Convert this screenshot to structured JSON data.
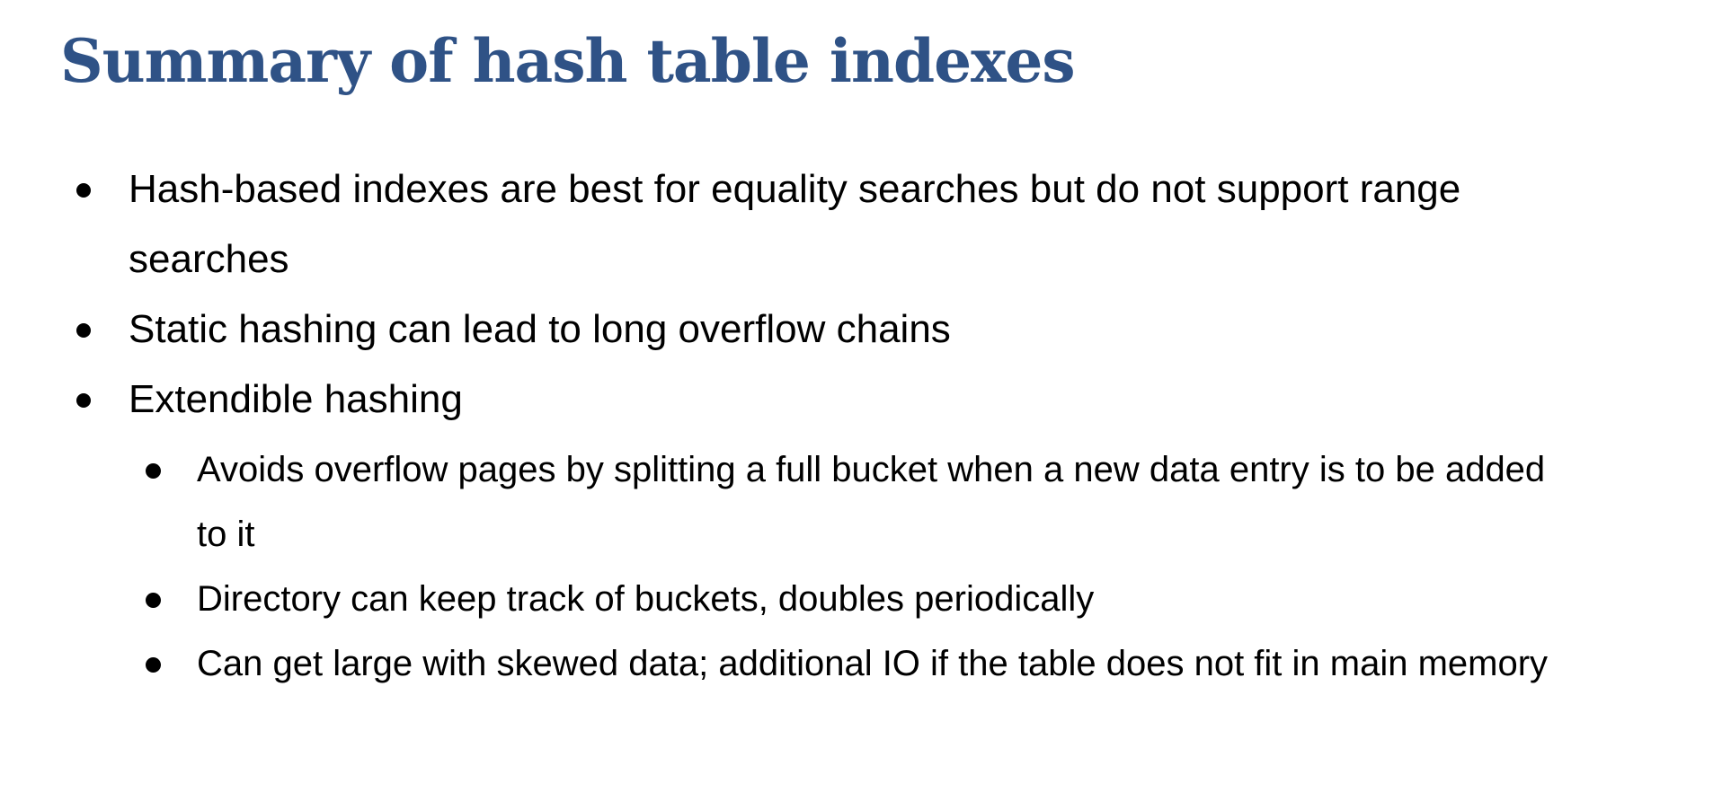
{
  "slide": {
    "title": "Summary of hash table indexes",
    "bullets": [
      {
        "level": 1,
        "lines": [
          "Hash-based indexes are best for equality searches but do not support range",
          "searches"
        ]
      },
      {
        "level": 1,
        "lines": [
          "Static hashing can lead to long overflow chains"
        ]
      },
      {
        "level": 1,
        "lines": [
          "Extendible hashing"
        ]
      },
      {
        "level": 2,
        "lines": [
          "Avoids overflow pages by splitting a full bucket when a new data entry is to be added",
          "to it"
        ]
      },
      {
        "level": 2,
        "lines": [
          "Directory can keep track of buckets, doubles periodically"
        ]
      },
      {
        "level": 2,
        "lines": [
          "Can get large with skewed data; additional IO if the table does not fit in main memory"
        ]
      }
    ]
  },
  "colors": {
    "title": "#2f5286",
    "text": "#000000",
    "background": "#ffffff"
  }
}
